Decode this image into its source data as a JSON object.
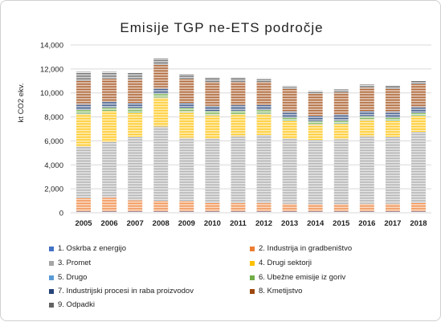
{
  "chart_data": {
    "type": "bar",
    "stacked": true,
    "title": "Emisije TGP ne-ETS področje",
    "ylabel": "kt CO2 ekv.",
    "xlabel": "",
    "ylim": [
      0,
      14000
    ],
    "yticks": [
      "0",
      "2,000",
      "4,000",
      "6,000",
      "8,000",
      "10,000",
      "12,000",
      "14,000"
    ],
    "ytick_values": [
      0,
      2000,
      4000,
      6000,
      8000,
      10000,
      12000,
      14000
    ],
    "grid": true,
    "legend_position": "bottom",
    "categories": [
      "2005",
      "2006",
      "2007",
      "2008",
      "2009",
      "2010",
      "2011",
      "2012",
      "2013",
      "2014",
      "2015",
      "2016",
      "2017",
      "2018"
    ],
    "series": [
      {
        "name": "1. Oskrba z energijo",
        "color": "#4472C4",
        "values": [
          100,
          100,
          100,
          100,
          100,
          100,
          100,
          100,
          100,
          100,
          100,
          100,
          100,
          100
        ]
      },
      {
        "name": "2. Industrija in gradbeništvo",
        "color": "#ED7D31",
        "values": [
          1150,
          1200,
          950,
          900,
          850,
          750,
          700,
          700,
          650,
          600,
          600,
          650,
          650,
          750
        ]
      },
      {
        "name": "3. Promet",
        "color": "#A5A5A5",
        "values": [
          4300,
          4650,
          5300,
          6200,
          5300,
          5350,
          5600,
          5700,
          5450,
          5350,
          5450,
          5650,
          5600,
          5900
        ]
      },
      {
        "name": "4. Drugi sektorji",
        "color": "#FFC000",
        "values": [
          2700,
          2500,
          2000,
          2400,
          2150,
          1950,
          1800,
          1750,
          1500,
          1300,
          1300,
          1350,
          1350,
          1350
        ]
      },
      {
        "name": "5. Drugo",
        "color": "#5B9BD5",
        "values": [
          20,
          20,
          20,
          20,
          20,
          20,
          20,
          20,
          20,
          20,
          20,
          20,
          20,
          20
        ]
      },
      {
        "name": "6. Ubežne emisije iz goriv",
        "color": "#70AD47",
        "values": [
          350,
          330,
          330,
          330,
          300,
          300,
          300,
          300,
          250,
          250,
          250,
          250,
          250,
          250
        ]
      },
      {
        "name": "7. Industrijski procesi in raba proizvodov",
        "color": "#264478",
        "values": [
          450,
          450,
          450,
          450,
          450,
          450,
          450,
          450,
          450,
          450,
          450,
          450,
          450,
          450
        ]
      },
      {
        "name": "8. Kmetijstvo",
        "color": "#9E480E",
        "values": [
          1950,
          1950,
          1950,
          1950,
          1950,
          1950,
          1950,
          1900,
          1900,
          1850,
          1850,
          1950,
          1900,
          1900
        ]
      },
      {
        "name": "9. Odpadki",
        "color": "#636363",
        "values": [
          730,
          550,
          600,
          500,
          430,
          380,
          330,
          280,
          230,
          220,
          270,
          270,
          270,
          270
        ]
      }
    ]
  }
}
